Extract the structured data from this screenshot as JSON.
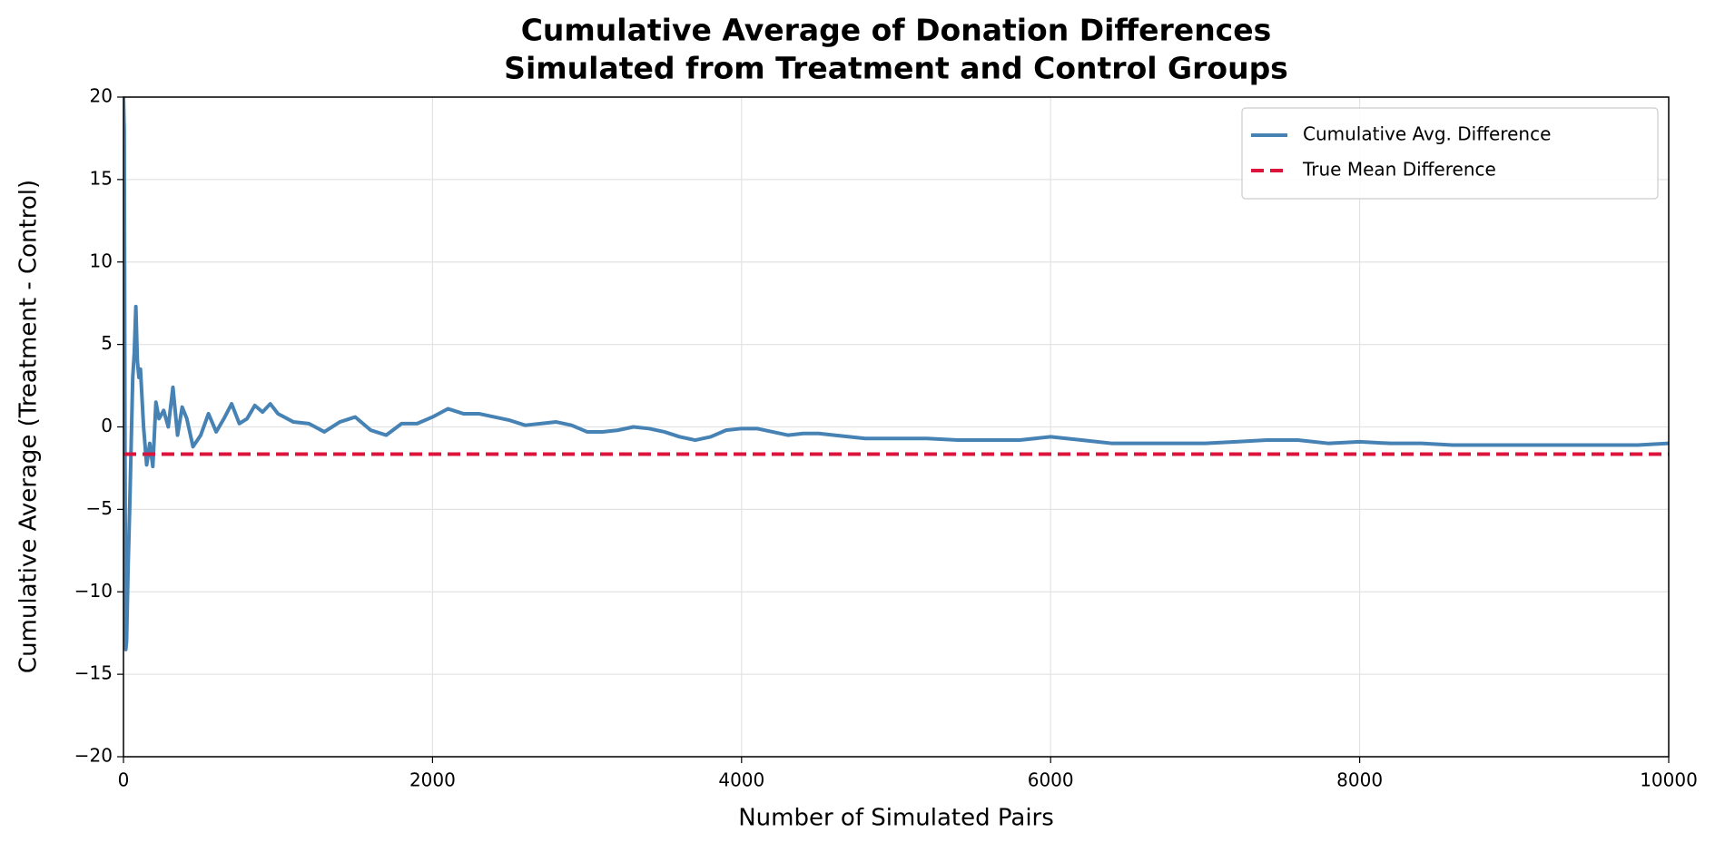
{
  "chart_data": {
    "type": "line",
    "title": [
      "Cumulative Average of Donation Differences",
      "Simulated from Treatment and Control Groups"
    ],
    "xlabel": "Number of Simulated Pairs",
    "ylabel": "Cumulative Average (Treatment - Control)",
    "x": [
      0,
      5,
      10,
      15,
      20,
      30,
      40,
      50,
      60,
      70,
      80,
      90,
      100,
      110,
      130,
      150,
      170,
      190,
      210,
      230,
      260,
      290,
      320,
      350,
      380,
      410,
      450,
      500,
      550,
      600,
      650,
      700,
      750,
      800,
      850,
      900,
      950,
      1000,
      1100,
      1200,
      1300,
      1400,
      1500,
      1600,
      1700,
      1800,
      1900,
      2000,
      2100,
      2200,
      2300,
      2400,
      2500,
      2600,
      2700,
      2800,
      2900,
      3000,
      3100,
      3200,
      3300,
      3400,
      3500,
      3600,
      3700,
      3800,
      3900,
      4000,
      4100,
      4200,
      4300,
      4400,
      4500,
      4600,
      4800,
      5000,
      5200,
      5400,
      5600,
      5800,
      6000,
      6200,
      6400,
      6600,
      6800,
      7000,
      7200,
      7400,
      7600,
      7800,
      8000,
      8200,
      8400,
      8600,
      8800,
      9000,
      9200,
      9400,
      9600,
      9800,
      10000
    ],
    "series": [
      {
        "name": "Cumulative Avg. Difference",
        "color": "#4682b4",
        "values": [
          20,
          18,
          -2,
          -13.5,
          -13,
          -8.5,
          -5,
          -1,
          3,
          4.5,
          7.3,
          4,
          3,
          3.5,
          0,
          -2.3,
          -1,
          -2.4,
          1.5,
          0.5,
          1,
          0,
          2.4,
          -0.5,
          1.2,
          0.5,
          -1.2,
          -0.5,
          0.8,
          -0.3,
          0.5,
          1.4,
          0.2,
          0.5,
          1.3,
          0.9,
          1.4,
          0.8,
          0.3,
          0.2,
          -0.3,
          0.3,
          0.6,
          -0.2,
          -0.5,
          0.2,
          0.2,
          0.6,
          1.1,
          0.8,
          0.8,
          0.6,
          0.4,
          0.1,
          0.2,
          0.3,
          0.1,
          -0.3,
          -0.3,
          -0.2,
          0,
          -0.1,
          -0.3,
          -0.6,
          -0.8,
          -0.6,
          -0.2,
          -0.1,
          -0.1,
          -0.3,
          -0.5,
          -0.4,
          -0.4,
          -0.5,
          -0.7,
          -0.7,
          -0.7,
          -0.8,
          -0.8,
          -0.8,
          -0.6,
          -0.8,
          -1,
          -1,
          -1,
          -1,
          -0.9,
          -0.8,
          -0.8,
          -1,
          -0.9,
          -1,
          -1,
          -1.1,
          -1.1,
          -1.1,
          -1.1,
          -1.1,
          -1.1,
          -1.1,
          -1
        ]
      }
    ],
    "reference_line": {
      "name": "True Mean Difference",
      "color": "#dc143c",
      "value": -1.65
    },
    "xlim": [
      0,
      10000
    ],
    "xticks": [
      0,
      2000,
      4000,
      6000,
      8000,
      10000
    ],
    "ylim": [
      -20,
      20
    ],
    "yticks": [
      {
        "value": -20,
        "label": "−20"
      },
      {
        "value": -15,
        "label": "−15"
      },
      {
        "value": -10,
        "label": "−10"
      },
      {
        "value": -5,
        "label": "−5"
      },
      0,
      5,
      10,
      15,
      20
    ],
    "grid": true,
    "legend": "upper right"
  }
}
